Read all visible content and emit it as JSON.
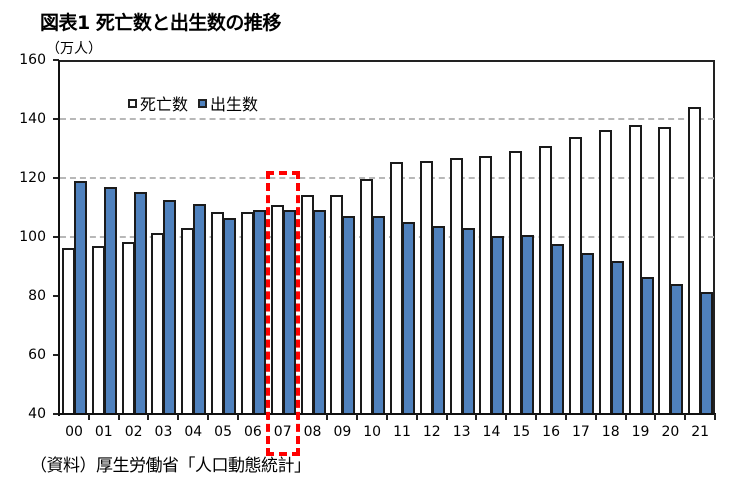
{
  "title": "図表1  死亡数と出生数の推移",
  "unit_label": "（万人）",
  "source": "（資料）厚生労働省「人口動態統計」",
  "legend": {
    "deaths_label": "死亡数",
    "births_label": "出生数"
  },
  "colors": {
    "deaths_fill": "#ffffff",
    "births_fill": "#4f81bd",
    "highlight": "#ff0000",
    "grid": "#b8b8b8"
  },
  "highlight": {
    "category": "07",
    "style": "red dashed box"
  },
  "chart_data": {
    "type": "bar",
    "title": "図表1  死亡数と出生数の推移",
    "xlabel": "",
    "ylabel": "（万人）",
    "ylim": [
      40,
      160
    ],
    "yticks": [
      40,
      60,
      80,
      100,
      120,
      140,
      160
    ],
    "grid": {
      "y": true,
      "style": "dashed",
      "at": [
        100,
        120,
        140
      ]
    },
    "legend_position": "top-left inside plot",
    "categories": [
      "00",
      "01",
      "02",
      "03",
      "04",
      "05",
      "06",
      "07",
      "08",
      "09",
      "10",
      "11",
      "12",
      "13",
      "14",
      "15",
      "16",
      "17",
      "18",
      "19",
      "20",
      "21"
    ],
    "series": [
      {
        "name": "死亡数",
        "color": "#ffffff",
        "values": [
          96.2,
          97.0,
          98.2,
          101.5,
          102.9,
          108.4,
          108.4,
          110.8,
          114.2,
          114.2,
          119.7,
          125.3,
          125.6,
          126.8,
          127.3,
          129.0,
          130.8,
          134.0,
          136.2,
          138.1,
          137.3,
          143.9
        ]
      },
      {
        "name": "出生数",
        "color": "#4f81bd",
        "values": [
          119.1,
          117.1,
          115.4,
          112.4,
          111.1,
          106.3,
          109.3,
          109.0,
          109.1,
          107.0,
          107.1,
          105.1,
          103.7,
          103.0,
          100.4,
          100.6,
          97.7,
          94.6,
          91.8,
          86.5,
          84.1,
          81.2
        ]
      }
    ],
    "annotations": [
      {
        "type": "dashed-box",
        "category": "07",
        "color": "#ff0000"
      }
    ]
  }
}
